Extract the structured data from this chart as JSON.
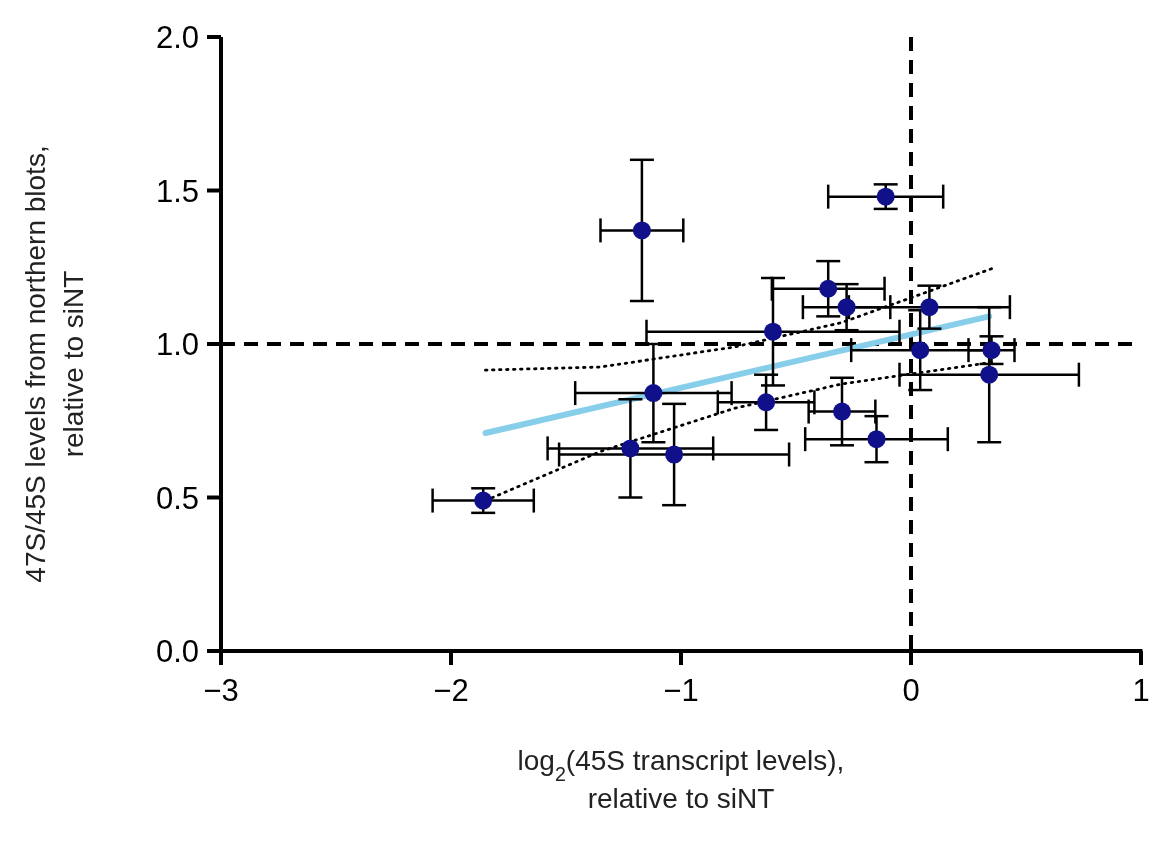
{
  "chart_data": {
    "type": "scatter",
    "xlabel": "log$_{2}$(45S transcript levels),\nrelative to siNT",
    "ylabel": "47S/45S levels from northern blots,\nrelative to siNT",
    "xlim": [
      -3,
      1
    ],
    "xticks": [
      {
        "value": -3,
        "label": "−3"
      },
      {
        "value": -2,
        "label": "−2"
      },
      {
        "value": -1,
        "label": "−1"
      },
      0,
      1
    ],
    "ylim": [
      0,
      2
    ],
    "yticks": [
      {
        "value": 0,
        "label": "0.0"
      },
      {
        "value": 0.5,
        "label": "0.5"
      },
      {
        "value": 1,
        "label": "1.0"
      },
      {
        "value": 1.5,
        "label": "1.5"
      },
      {
        "value": 2,
        "label": "2.0"
      }
    ],
    "grid": false,
    "ref_lines": [
      {
        "axis": "x",
        "value": 0,
        "color": "#000000",
        "line_style": "dashed"
      },
      {
        "axis": "y",
        "value": 1,
        "color": "#000000",
        "line_style": "dashed"
      }
    ],
    "series": [
      {
        "type": "line",
        "color": "#87ceeb",
        "marker": "none",
        "line_style": "solid",
        "x": [
          -1.85,
          0.34
        ],
        "values": [
          0.71,
          1.09
        ]
      },
      {
        "type": "line",
        "color": "#000000",
        "marker": "none",
        "line_style": "dotted",
        "x": [
          -1.85,
          -1.35,
          -0.77,
          -0.3,
          0.35
        ],
        "values": [
          0.915,
          0.925,
          0.99,
          1.07,
          1.245
        ]
      },
      {
        "type": "line",
        "color": "#000000",
        "marker": "none",
        "line_style": "dotted",
        "x": [
          -1.85,
          -1.35,
          -0.77,
          -0.3,
          0.35
        ],
        "values": [
          0.49,
          0.65,
          0.79,
          0.87,
          0.94
        ]
      },
      {
        "color": "#10108a",
        "marker": "circle",
        "x": [
          -1.86,
          -1.17,
          -1.12,
          -1.22,
          -1.03,
          -0.6,
          -0.63,
          -0.36,
          -0.28,
          -0.3,
          -0.15,
          -0.11,
          0.08,
          0.04,
          0.35,
          0.34
        ],
        "values": [
          0.49,
          1.37,
          0.84,
          0.66,
          0.64,
          1.04,
          0.81,
          1.18,
          1.12,
          0.78,
          0.69,
          1.48,
          1.12,
          0.98,
          0.98,
          0.9
        ],
        "errors": [
          0.04,
          0.23,
          0.16,
          0.16,
          0.165,
          0.175,
          0.09,
          0.09,
          0.075,
          0.11,
          0.075,
          0.04,
          0.07,
          0.13,
          0.045,
          0.22
        ],
        "xerrors": [
          0.22,
          0.18,
          0.34,
          0.36,
          0.5,
          0.55,
          0.21,
          0.245,
          0.19,
          0.145,
          0.31,
          0.25,
          0.35,
          0.3,
          0.1,
          0.39
        ]
      }
    ]
  }
}
